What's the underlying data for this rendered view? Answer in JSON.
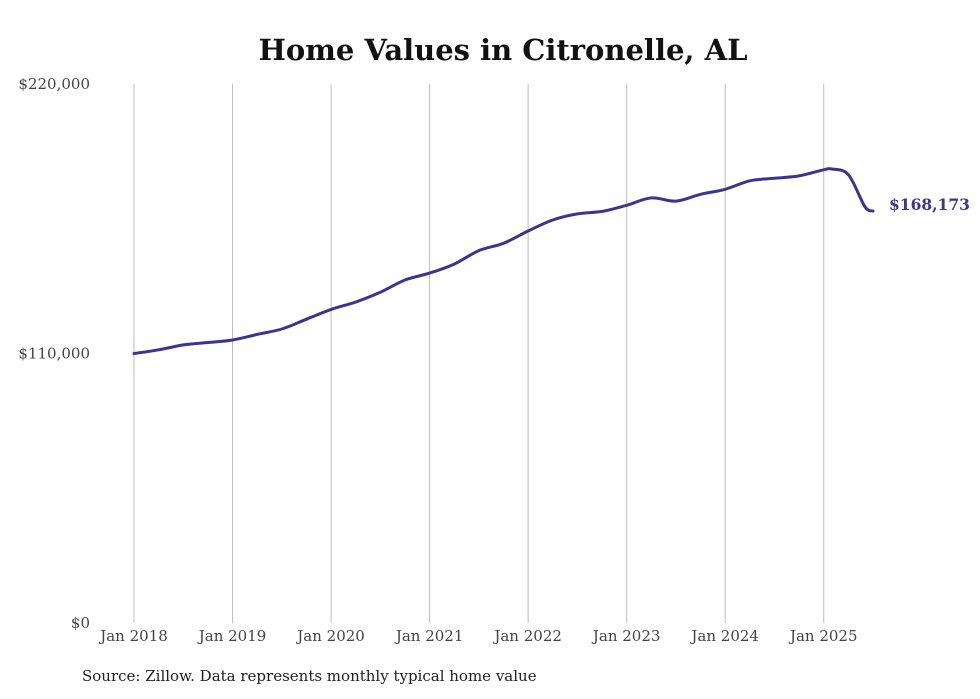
{
  "source_note": "Source: Zillow. Data represents monthly typical home value",
  "chart_data": {
    "type": "line",
    "title": "Home Values in Citronelle, AL",
    "xlabel": "",
    "ylabel": "",
    "ylim": [
      0,
      220000
    ],
    "yticks": [
      {
        "value": 0,
        "label": "$0"
      },
      {
        "value": 110000,
        "label": "$110,000"
      },
      {
        "value": 220000,
        "label": "$220,000"
      }
    ],
    "xticks": [
      "Jan 2018",
      "Jan 2019",
      "Jan 2020",
      "Jan 2021",
      "Jan 2022",
      "Jan 2023",
      "Jan 2024",
      "Jan 2025"
    ],
    "xrange": [
      "2018-01",
      "2025-07"
    ],
    "grid": "vertical lines at each January",
    "line_color": "#3a3592",
    "end_label": "$168,173",
    "series": [
      {
        "name": "",
        "x": [
          "2018-01",
          "2018-04",
          "2018-07",
          "2018-10",
          "2019-01",
          "2019-04",
          "2019-07",
          "2019-10",
          "2020-01",
          "2020-04",
          "2020-07",
          "2020-10",
          "2021-01",
          "2021-04",
          "2021-07",
          "2021-10",
          "2022-01",
          "2022-04",
          "2022-07",
          "2022-10",
          "2023-01",
          "2023-04",
          "2023-07",
          "2023-10",
          "2024-01",
          "2024-04",
          "2024-07",
          "2024-10",
          "2025-01",
          "2025-02",
          "2025-04",
          "2025-06",
          "2025-07"
        ],
        "values": [
          110000,
          111500,
          113500,
          114500,
          115500,
          117800,
          120000,
          124000,
          128000,
          131000,
          135000,
          140000,
          142800,
          146500,
          152000,
          155000,
          160000,
          164500,
          167000,
          168000,
          170500,
          173500,
          172200,
          175000,
          177000,
          180500,
          181500,
          182500,
          185000,
          185300,
          183000,
          170000,
          168173
        ]
      }
    ]
  }
}
